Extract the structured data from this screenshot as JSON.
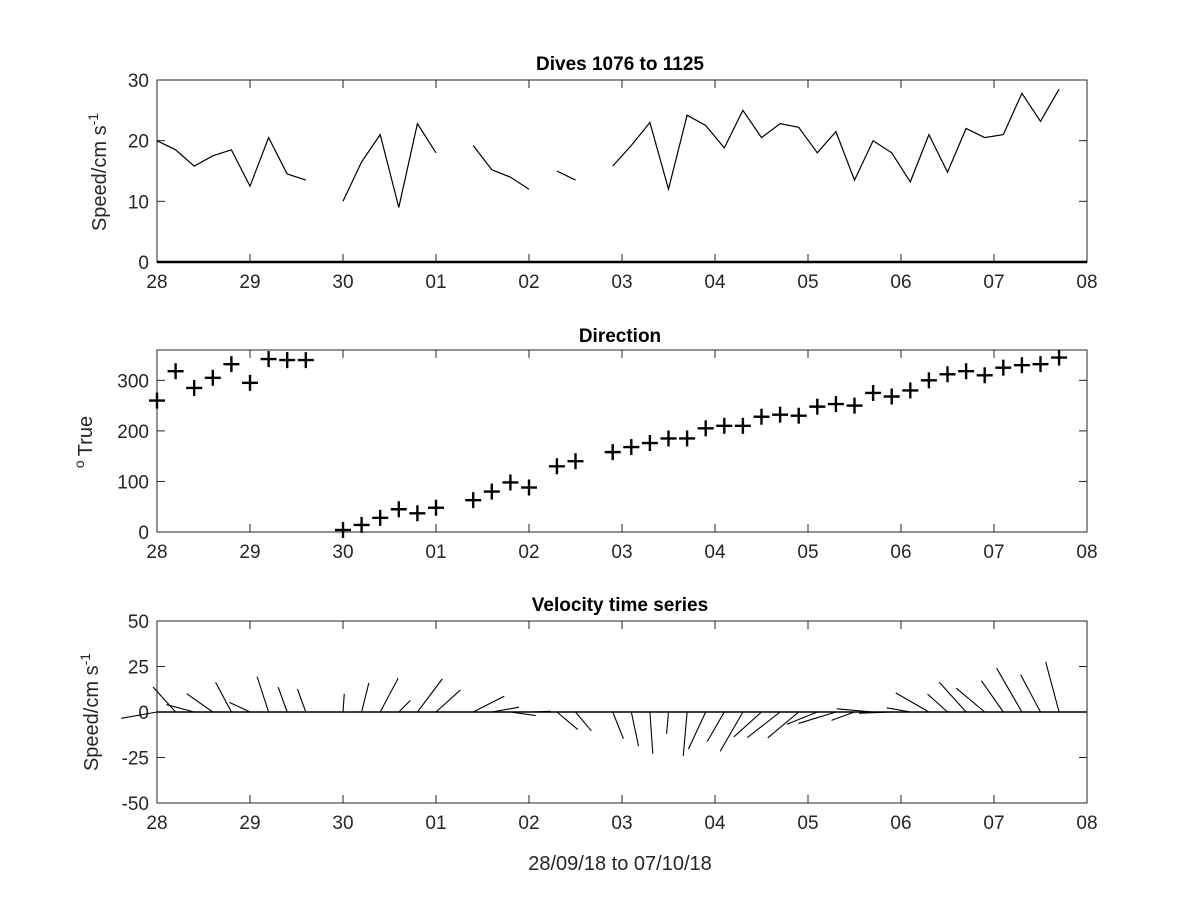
{
  "figure": {
    "xlabel": "28/09/18 to 07/10/18",
    "x_tick_labels": [
      "28",
      "29",
      "30",
      "01",
      "02",
      "03",
      "04",
      "05",
      "06",
      "07",
      "08"
    ]
  },
  "chart_data": [
    {
      "type": "line",
      "title": "Dives 1076 to 1125",
      "ylabel": "Speed/cm s",
      "ylabel_exponent": "-1",
      "xlim": [
        0,
        10
      ],
      "ylim": [
        0,
        30
      ],
      "y_ticks": [
        "0",
        "10",
        "20",
        "30"
      ],
      "x_units": "days from 28/09/18",
      "segments": [
        [
          [
            0.0,
            20
          ],
          [
            0.2,
            18.5
          ],
          [
            0.4,
            15.8
          ],
          [
            0.6,
            17.5
          ],
          [
            0.8,
            18.5
          ],
          [
            1.0,
            12.5
          ],
          [
            1.2,
            20.5
          ],
          [
            1.4,
            14.5
          ],
          [
            1.6,
            13.5
          ]
        ],
        [
          [
            2.0,
            10
          ],
          [
            2.2,
            16.5
          ],
          [
            2.4,
            21
          ],
          [
            2.6,
            9
          ],
          [
            2.8,
            22.8
          ],
          [
            3.0,
            18
          ]
        ],
        [
          [
            3.4,
            19.2
          ],
          [
            3.6,
            15.2
          ],
          [
            3.8,
            14
          ],
          [
            4.0,
            12
          ]
        ],
        [
          [
            4.3,
            15
          ],
          [
            4.5,
            13.5
          ]
        ],
        [
          [
            4.9,
            15.8
          ],
          [
            5.1,
            19.2
          ],
          [
            5.3,
            23
          ],
          [
            5.5,
            12
          ],
          [
            5.7,
            24.2
          ],
          [
            5.9,
            22.5
          ],
          [
            6.1,
            18.8
          ],
          [
            6.3,
            25
          ],
          [
            6.5,
            20.5
          ],
          [
            6.7,
            22.8
          ],
          [
            6.9,
            22.2
          ],
          [
            7.1,
            18
          ],
          [
            7.3,
            21.5
          ],
          [
            7.5,
            13.5
          ],
          [
            7.7,
            20
          ],
          [
            7.9,
            18
          ],
          [
            8.1,
            13.2
          ],
          [
            8.3,
            21
          ],
          [
            8.5,
            14.8
          ],
          [
            8.7,
            22
          ],
          [
            8.9,
            20.5
          ],
          [
            9.1,
            21
          ],
          [
            9.3,
            27.8
          ],
          [
            9.5,
            23.2
          ],
          [
            9.7,
            28.5
          ]
        ]
      ]
    },
    {
      "type": "scatter",
      "title": "Direction",
      "ylabel": "True",
      "ylabel_prefix": "o",
      "xlim": [
        0,
        10
      ],
      "ylim": [
        0,
        360
      ],
      "y_ticks": [
        "0",
        "100",
        "200",
        "300"
      ],
      "marker": "+",
      "points": [
        [
          0.0,
          260
        ],
        [
          0.2,
          318
        ],
        [
          0.4,
          285
        ],
        [
          0.6,
          305
        ],
        [
          0.8,
          332
        ],
        [
          1.0,
          295
        ],
        [
          1.2,
          342
        ],
        [
          1.4,
          340
        ],
        [
          1.6,
          340
        ],
        [
          2.0,
          4
        ],
        [
          2.2,
          14
        ],
        [
          2.4,
          28
        ],
        [
          2.6,
          45
        ],
        [
          2.8,
          37
        ],
        [
          3.0,
          48
        ],
        [
          3.4,
          63
        ],
        [
          3.6,
          80
        ],
        [
          3.8,
          98
        ],
        [
          4.0,
          88
        ],
        [
          4.3,
          130
        ],
        [
          4.5,
          140
        ],
        [
          4.9,
          158
        ],
        [
          5.1,
          168
        ],
        [
          5.3,
          176
        ],
        [
          5.5,
          185
        ],
        [
          5.7,
          185
        ],
        [
          5.9,
          205
        ],
        [
          6.1,
          210
        ],
        [
          6.3,
          210
        ],
        [
          6.5,
          228
        ],
        [
          6.7,
          232
        ],
        [
          6.9,
          230
        ],
        [
          7.1,
          248
        ],
        [
          7.3,
          253
        ],
        [
          7.5,
          250
        ],
        [
          7.7,
          275
        ],
        [
          7.9,
          268
        ],
        [
          8.1,
          280
        ],
        [
          8.3,
          300
        ],
        [
          8.5,
          312
        ],
        [
          8.7,
          318
        ],
        [
          8.9,
          310
        ],
        [
          9.1,
          325
        ],
        [
          9.3,
          330
        ],
        [
          9.5,
          332
        ],
        [
          9.7,
          345
        ]
      ]
    },
    {
      "type": "quiver",
      "title": "Velocity time series",
      "ylabel": "Speed/cm s",
      "ylabel_exponent": "-1",
      "xlim": [
        0,
        10
      ],
      "ylim": [
        -50,
        50
      ],
      "y_ticks": [
        "50",
        "25",
        "0",
        "-25",
        "-50"
      ],
      "baseline": 0
    }
  ]
}
